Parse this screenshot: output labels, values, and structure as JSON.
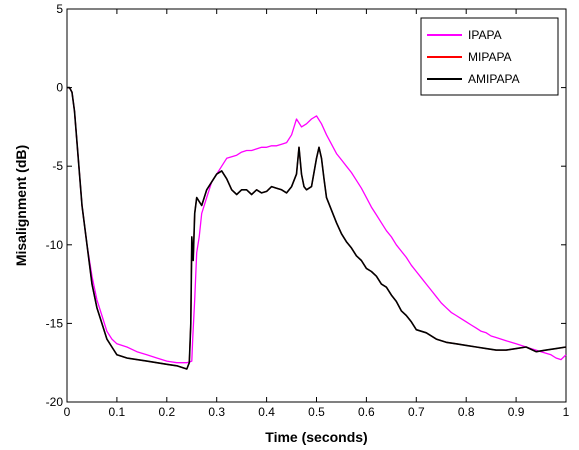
{
  "chart_data": {
    "type": "line",
    "title": "",
    "xlabel": "Time (seconds)",
    "ylabel": "Misalignment (dB)",
    "xlim": [
      0,
      1
    ],
    "ylim": [
      -20,
      5
    ],
    "x_ticks": [
      0,
      0.1,
      0.2,
      0.3,
      0.4,
      0.5,
      0.6,
      0.7,
      0.8,
      0.9,
      1
    ],
    "x_tick_labels": [
      "0",
      "0.1",
      "0.2",
      "0.3",
      "0.4",
      "0.5",
      "0.6",
      "0.7",
      "0.8",
      "0.9",
      "1"
    ],
    "y_ticks": [
      -20,
      -15,
      -10,
      -5,
      0,
      5
    ],
    "y_tick_labels": [
      "-20",
      "-15",
      "-10",
      "-5",
      "0",
      "5"
    ],
    "grid": false,
    "legend_position": "top-right",
    "series": [
      {
        "name": "IPAPA",
        "color": "#ff00ff",
        "x": [
          0,
          0.005,
          0.01,
          0.015,
          0.02,
          0.025,
          0.03,
          0.04,
          0.05,
          0.06,
          0.07,
          0.08,
          0.09,
          0.1,
          0.12,
          0.14,
          0.16,
          0.18,
          0.2,
          0.22,
          0.24,
          0.25,
          0.252,
          0.256,
          0.26,
          0.265,
          0.27,
          0.28,
          0.29,
          0.3,
          0.31,
          0.32,
          0.33,
          0.34,
          0.35,
          0.36,
          0.37,
          0.38,
          0.39,
          0.4,
          0.41,
          0.42,
          0.43,
          0.44,
          0.45,
          0.46,
          0.47,
          0.48,
          0.49,
          0.5,
          0.51,
          0.52,
          0.53,
          0.54,
          0.55,
          0.56,
          0.57,
          0.58,
          0.59,
          0.6,
          0.61,
          0.62,
          0.63,
          0.64,
          0.65,
          0.66,
          0.67,
          0.68,
          0.69,
          0.7,
          0.71,
          0.72,
          0.73,
          0.74,
          0.75,
          0.76,
          0.77,
          0.78,
          0.79,
          0.8,
          0.81,
          0.82,
          0.83,
          0.84,
          0.85,
          0.86,
          0.87,
          0.88,
          0.89,
          0.9,
          0.91,
          0.92,
          0.93,
          0.94,
          0.95,
          0.96,
          0.97,
          0.98,
          0.99,
          1.0
        ],
        "y": [
          0,
          0,
          -0.3,
          -1.5,
          -3.5,
          -5.5,
          -7.5,
          -10,
          -12,
          -13.5,
          -14.5,
          -15.5,
          -16,
          -16.3,
          -16.5,
          -16.8,
          -17,
          -17.2,
          -17.4,
          -17.5,
          -17.5,
          -17.4,
          -16,
          -13.5,
          -10.5,
          -9.5,
          -8,
          -7,
          -6,
          -5.5,
          -5,
          -4.5,
          -4.4,
          -4.3,
          -4.1,
          -4,
          -4,
          -3.9,
          -3.8,
          -3.8,
          -3.7,
          -3.7,
          -3.6,
          -3.5,
          -3,
          -2,
          -2.5,
          -2.3,
          -2,
          -1.8,
          -2.3,
          -3,
          -3.6,
          -4.2,
          -4.6,
          -5,
          -5.4,
          -5.9,
          -6.4,
          -7,
          -7.6,
          -8.1,
          -8.6,
          -9.1,
          -9.5,
          -10,
          -10.4,
          -10.8,
          -11.3,
          -11.7,
          -12.1,
          -12.5,
          -12.9,
          -13.3,
          -13.7,
          -14,
          -14.3,
          -14.5,
          -14.7,
          -14.9,
          -15.1,
          -15.3,
          -15.5,
          -15.6,
          -15.8,
          -15.9,
          -16,
          -16.1,
          -16.2,
          -16.3,
          -16.4,
          -16.5,
          -16.6,
          -16.7,
          -16.8,
          -16.9,
          -17,
          -17.2,
          -17.3,
          -17
        ]
      },
      {
        "name": "MIPAPA",
        "color": "#ff0000",
        "x": [
          0,
          0.005,
          0.01,
          0.015,
          0.02,
          0.025,
          0.03,
          0.04,
          0.05,
          0.06,
          0.07,
          0.08,
          0.09,
          0.1,
          0.12,
          0.14,
          0.16,
          0.18,
          0.2,
          0.22,
          0.24,
          0.245,
          0.248,
          0.25,
          0.253,
          0.256,
          0.26,
          0.27,
          0.28,
          0.29,
          0.3,
          0.31,
          0.32,
          0.33,
          0.34,
          0.35,
          0.36,
          0.37,
          0.38,
          0.39,
          0.4,
          0.41,
          0.42,
          0.43,
          0.44,
          0.45,
          0.46,
          0.465,
          0.47,
          0.475,
          0.48,
          0.49,
          0.5,
          0.505,
          0.51,
          0.515,
          0.52,
          0.53,
          0.54,
          0.55,
          0.56,
          0.57,
          0.58,
          0.59,
          0.6,
          0.61,
          0.62,
          0.63,
          0.64,
          0.65,
          0.66,
          0.67,
          0.68,
          0.69,
          0.7,
          0.72,
          0.74,
          0.76,
          0.78,
          0.8,
          0.82,
          0.84,
          0.86,
          0.88,
          0.9,
          0.92,
          0.94,
          0.96,
          0.98,
          1.0
        ],
        "y": [
          0,
          0,
          -0.3,
          -1.5,
          -3.5,
          -5.5,
          -7.5,
          -10,
          -12.5,
          -14,
          -15,
          -16,
          -16.5,
          -17,
          -17.2,
          -17.3,
          -17.4,
          -17.5,
          -17.6,
          -17.7,
          -17.9,
          -17.5,
          -15,
          -9.5,
          -11,
          -8,
          -7,
          -7.5,
          -6.5,
          -6,
          -5.5,
          -5.3,
          -5.8,
          -6.5,
          -6.8,
          -6.5,
          -6.5,
          -6.8,
          -6.5,
          -6.7,
          -6.6,
          -6.3,
          -6.4,
          -6.5,
          -6.7,
          -6.3,
          -5.5,
          -3.8,
          -5.5,
          -6.3,
          -6.5,
          -6.3,
          -4.5,
          -3.8,
          -4.5,
          -5.8,
          -7,
          -7.8,
          -8.6,
          -9.3,
          -9.8,
          -10.2,
          -10.7,
          -11,
          -11.5,
          -11.7,
          -12,
          -12.5,
          -12.7,
          -13.2,
          -13.6,
          -14.2,
          -14.5,
          -14.9,
          -15.4,
          -15.6,
          -16,
          -16.2,
          -16.3,
          -16.4,
          -16.5,
          -16.6,
          -16.7,
          -16.7,
          -16.6,
          -16.5,
          -16.8,
          -16.7,
          -16.6,
          -16.5
        ]
      },
      {
        "name": "AMIPAPA",
        "color": "#000000",
        "x": [
          0,
          0.005,
          0.01,
          0.015,
          0.02,
          0.025,
          0.03,
          0.04,
          0.05,
          0.06,
          0.07,
          0.08,
          0.09,
          0.1,
          0.12,
          0.14,
          0.16,
          0.18,
          0.2,
          0.22,
          0.24,
          0.245,
          0.248,
          0.25,
          0.253,
          0.256,
          0.26,
          0.27,
          0.28,
          0.29,
          0.3,
          0.31,
          0.32,
          0.33,
          0.34,
          0.35,
          0.36,
          0.37,
          0.38,
          0.39,
          0.4,
          0.41,
          0.42,
          0.43,
          0.44,
          0.45,
          0.46,
          0.465,
          0.47,
          0.475,
          0.48,
          0.49,
          0.5,
          0.505,
          0.51,
          0.515,
          0.52,
          0.53,
          0.54,
          0.55,
          0.56,
          0.57,
          0.58,
          0.59,
          0.6,
          0.61,
          0.62,
          0.63,
          0.64,
          0.65,
          0.66,
          0.67,
          0.68,
          0.69,
          0.7,
          0.72,
          0.74,
          0.76,
          0.78,
          0.8,
          0.82,
          0.84,
          0.86,
          0.88,
          0.9,
          0.92,
          0.94,
          0.96,
          0.98,
          1.0
        ],
        "y": [
          0,
          0,
          -0.3,
          -1.5,
          -3.5,
          -5.5,
          -7.5,
          -10,
          -12.5,
          -14,
          -15,
          -16,
          -16.5,
          -17,
          -17.2,
          -17.3,
          -17.4,
          -17.5,
          -17.6,
          -17.7,
          -17.9,
          -17.5,
          -15,
          -9.5,
          -11,
          -8,
          -7,
          -7.5,
          -6.5,
          -6,
          -5.5,
          -5.3,
          -5.8,
          -6.5,
          -6.8,
          -6.5,
          -6.5,
          -6.8,
          -6.5,
          -6.7,
          -6.6,
          -6.3,
          -6.4,
          -6.5,
          -6.7,
          -6.3,
          -5.5,
          -3.8,
          -5.5,
          -6.3,
          -6.5,
          -6.3,
          -4.5,
          -3.8,
          -4.5,
          -5.8,
          -7,
          -7.8,
          -8.6,
          -9.3,
          -9.8,
          -10.2,
          -10.7,
          -11,
          -11.5,
          -11.7,
          -12,
          -12.5,
          -12.7,
          -13.2,
          -13.6,
          -14.2,
          -14.5,
          -14.9,
          -15.4,
          -15.6,
          -16,
          -16.2,
          -16.3,
          -16.4,
          -16.5,
          -16.6,
          -16.7,
          -16.7,
          -16.6,
          -16.5,
          -16.8,
          -16.7,
          -16.6,
          -16.5
        ]
      }
    ]
  }
}
